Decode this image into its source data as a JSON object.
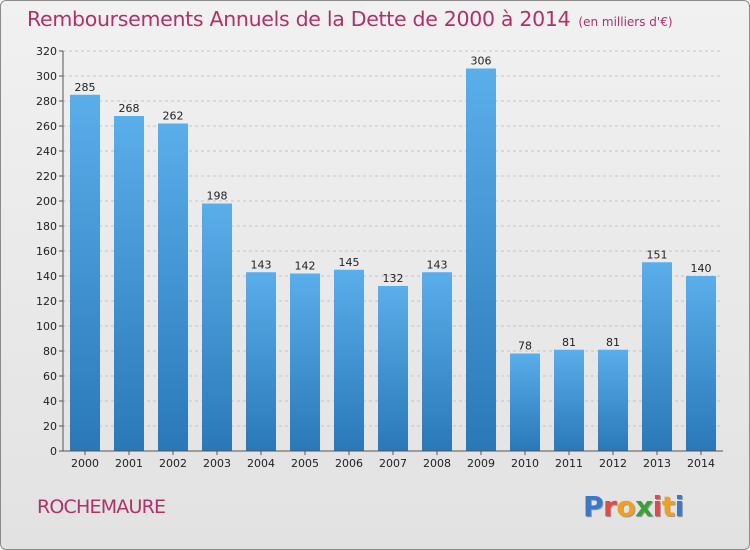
{
  "title": "Remboursements Annuels de la Dette de 2000 à 2014",
  "subtitle": "(en milliers d'€)",
  "commune": "ROCHEMAURE",
  "logo": [
    "P",
    "r",
    "o",
    "x",
    "i",
    "t",
    "i"
  ],
  "colors": {
    "accent": "#b0306a",
    "bar_top": "#5aaeea",
    "bar_bottom": "#2a78b8",
    "logo": [
      "#3a78c8",
      "#e04a4a",
      "#f0a020",
      "#3aa03a",
      "#e04a4a",
      "#f0a020",
      "#3a78c8"
    ]
  },
  "chart_data": {
    "type": "bar",
    "title": "Remboursements Annuels de la Dette de 2000 à 2014",
    "subtitle": "(en milliers d'€)",
    "categories": [
      "2000",
      "2001",
      "2002",
      "2003",
      "2004",
      "2005",
      "2006",
      "2007",
      "2008",
      "2009",
      "2010",
      "2011",
      "2012",
      "2013",
      "2014"
    ],
    "values": [
      285,
      268,
      262,
      198,
      143,
      142,
      145,
      132,
      143,
      306,
      78,
      81,
      81,
      151,
      140
    ],
    "ylim": [
      0,
      320
    ],
    "yticks": [
      0,
      20,
      40,
      60,
      80,
      100,
      120,
      140,
      160,
      180,
      200,
      220,
      240,
      260,
      280,
      300,
      320
    ],
    "grid": "horizontal-dashed",
    "legend": "none"
  }
}
